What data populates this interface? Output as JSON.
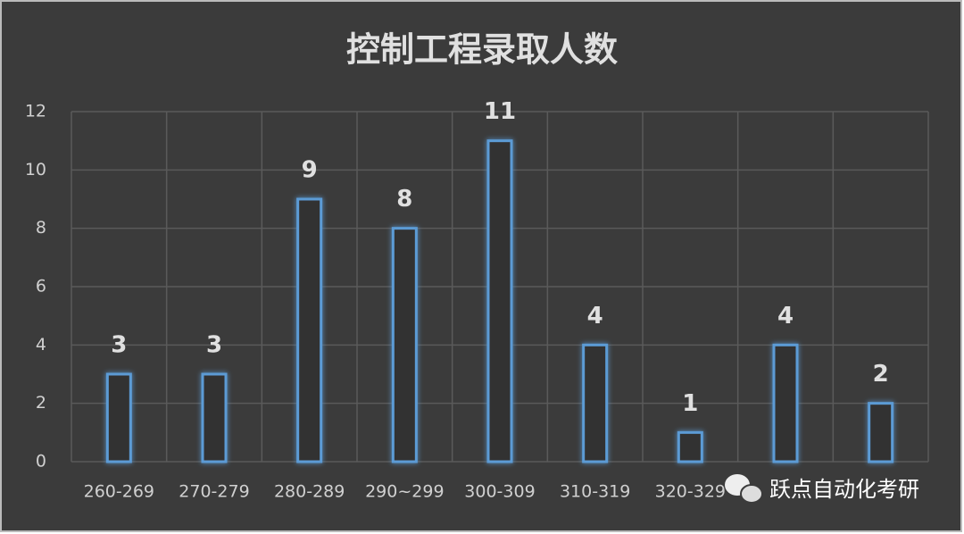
{
  "chart_data": {
    "type": "bar",
    "title": "控制工程录取人数",
    "categories": [
      "260-269",
      "270-279",
      "280-289",
      "290~299",
      "300-309",
      "310-319",
      "320-329",
      null,
      null
    ],
    "values": [
      3,
      3,
      9,
      8,
      11,
      4,
      1,
      4,
      2
    ],
    "color": "#5b9bd5",
    "ylim": [
      0,
      12
    ],
    "yticks": [
      0,
      2,
      4,
      6,
      8,
      10,
      12
    ],
    "grid": true,
    "watermark": "跃点自动化考研"
  }
}
